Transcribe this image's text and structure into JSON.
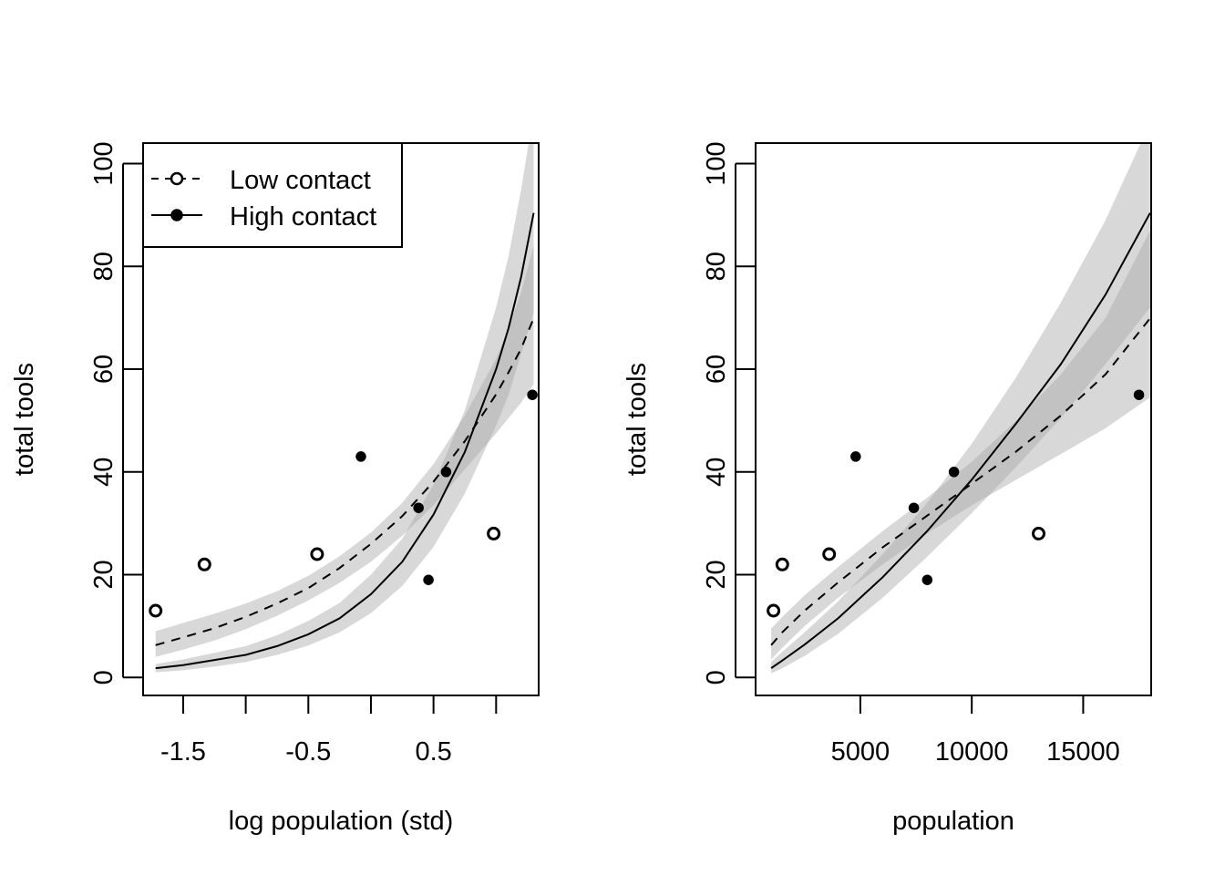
{
  "chart_data": [
    {
      "type": "scatter",
      "xlabel": "log population (std)",
      "ylabel": "total tools",
      "xlim": [
        -1.82,
        1.34
      ],
      "ylim": [
        -3.5,
        104
      ],
      "xticks": [
        -1.5,
        -1.0,
        -0.5,
        0.0,
        0.5,
        1.0
      ],
      "xtick_labels": [
        "-1.5",
        "",
        "-0.5",
        "",
        "0.5",
        ""
      ],
      "yticks": [
        0,
        20,
        40,
        60,
        80,
        100
      ],
      "ytick_labels": [
        "0",
        "20",
        "40",
        "60",
        "80",
        "100"
      ],
      "legend": {
        "position": "top-left",
        "entries": [
          {
            "label": "Low contact",
            "line": "dashed",
            "marker": "open-circle"
          },
          {
            "label": "High contact",
            "line": "solid",
            "marker": "filled-circle"
          }
        ]
      },
      "points": [
        {
          "x": -1.72,
          "y": 13,
          "contact": "low"
        },
        {
          "x": -1.33,
          "y": 22,
          "contact": "low"
        },
        {
          "x": -0.43,
          "y": 24,
          "contact": "low"
        },
        {
          "x": -0.08,
          "y": 43,
          "contact": "high"
        },
        {
          "x": 0.38,
          "y": 33,
          "contact": "high"
        },
        {
          "x": 0.46,
          "y": 19,
          "contact": "high"
        },
        {
          "x": 0.6,
          "y": 40,
          "contact": "high"
        },
        {
          "x": 0.98,
          "y": 28,
          "contact": "low"
        },
        {
          "x": 1.29,
          "y": 55,
          "contact": "high"
        }
      ],
      "series": [
        {
          "name": "Low contact",
          "style": "dashed",
          "x": [
            -1.72,
            -1.5,
            -1.25,
            -1.0,
            -0.75,
            -0.5,
            -0.25,
            0.0,
            0.25,
            0.5,
            0.75,
            1.0,
            1.1,
            1.2,
            1.3
          ],
          "y": [
            6.3,
            7.8,
            9.6,
            11.8,
            14.4,
            17.4,
            21.3,
            26.0,
            31.4,
            38.1,
            46.0,
            55.1,
            59.4,
            64.0,
            69.9
          ],
          "lower": [
            4.0,
            5.4,
            7.2,
            9.4,
            12.0,
            15.0,
            18.4,
            22.5,
            27.6,
            33.5,
            40.5,
            47.5,
            50.5,
            53.5,
            57.0
          ],
          "upper": [
            9.0,
            10.6,
            12.4,
            14.4,
            16.8,
            19.8,
            23.6,
            28.2,
            34.0,
            41.5,
            51.0,
            62.0,
            68.0,
            75.0,
            84.0
          ]
        },
        {
          "name": "High contact",
          "style": "solid",
          "x": [
            -1.72,
            -1.5,
            -1.25,
            -1.0,
            -0.75,
            -0.5,
            -0.25,
            0.0,
            0.25,
            0.5,
            0.75,
            1.0,
            1.1,
            1.2,
            1.3
          ],
          "y": [
            1.8,
            2.4,
            3.4,
            4.4,
            6.1,
            8.4,
            11.5,
            16.2,
            22.5,
            31.7,
            43.9,
            60.0,
            68.0,
            78.0,
            90.4
          ],
          "lower": [
            1.0,
            1.4,
            2.1,
            3.0,
            4.4,
            6.2,
            8.8,
            12.5,
            17.8,
            25.4,
            35.8,
            49.0,
            55.0,
            63.0,
            71.0
          ],
          "upper": [
            2.6,
            3.5,
            4.8,
            6.1,
            8.2,
            11.0,
            14.5,
            20.0,
            27.0,
            37.5,
            52.0,
            72.0,
            82.0,
            95.0,
            110.0
          ]
        }
      ]
    },
    {
      "type": "scatter",
      "xlabel": "population",
      "ylabel": "total tools",
      "xlim": [
        300,
        18050
      ],
      "ylim": [
        -3.5,
        104
      ],
      "xticks": [
        5000,
        10000,
        15000
      ],
      "xtick_labels": [
        "5000",
        "10000",
        "15000"
      ],
      "yticks": [
        0,
        20,
        40,
        60,
        80,
        100
      ],
      "ytick_labels": [
        "0",
        "20",
        "40",
        "60",
        "80",
        "100"
      ],
      "points": [
        {
          "x": 1100,
          "y": 13,
          "contact": "low"
        },
        {
          "x": 1500,
          "y": 22,
          "contact": "low"
        },
        {
          "x": 3600,
          "y": 24,
          "contact": "low"
        },
        {
          "x": 4791,
          "y": 43,
          "contact": "high"
        },
        {
          "x": 7400,
          "y": 33,
          "contact": "high"
        },
        {
          "x": 8000,
          "y": 19,
          "contact": "high"
        },
        {
          "x": 9200,
          "y": 40,
          "contact": "high"
        },
        {
          "x": 13000,
          "y": 28,
          "contact": "low"
        },
        {
          "x": 17500,
          "y": 55,
          "contact": "high"
        }
      ],
      "series": [
        {
          "name": "Low contact",
          "style": "dashed",
          "x": [
            1000,
            1500,
            2500,
            4000,
            6000,
            8000,
            10000,
            12000,
            14000,
            16000,
            18000
          ],
          "y": [
            6.3,
            8.8,
            13.0,
            18.5,
            25.3,
            31.5,
            37.7,
            44.0,
            51.0,
            59.0,
            69.9
          ],
          "lower": [
            3.5,
            5.8,
            10.0,
            15.5,
            22.0,
            28.0,
            33.5,
            38.5,
            43.5,
            48.5,
            54.5
          ],
          "upper": [
            9.5,
            11.8,
            16.0,
            21.5,
            28.5,
            35.0,
            42.0,
            50.0,
            59.0,
            70.0,
            87.0
          ]
        },
        {
          "name": "High contact",
          "style": "solid",
          "x": [
            1000,
            1500,
            2500,
            4000,
            6000,
            8000,
            10000,
            12000,
            14000,
            16000,
            18000
          ],
          "y": [
            1.8,
            3.3,
            6.4,
            11.5,
            19.5,
            28.5,
            38.5,
            49.5,
            61.0,
            74.5,
            90.4
          ],
          "lower": [
            0.8,
            1.8,
            4.2,
            8.5,
            15.5,
            23.5,
            32.0,
            41.0,
            50.5,
            61.0,
            72.0
          ],
          "upper": [
            3.0,
            5.0,
            8.8,
            14.8,
            24.0,
            34.0,
            45.5,
            58.5,
            73.0,
            89.0,
            108.0
          ]
        }
      ]
    }
  ]
}
